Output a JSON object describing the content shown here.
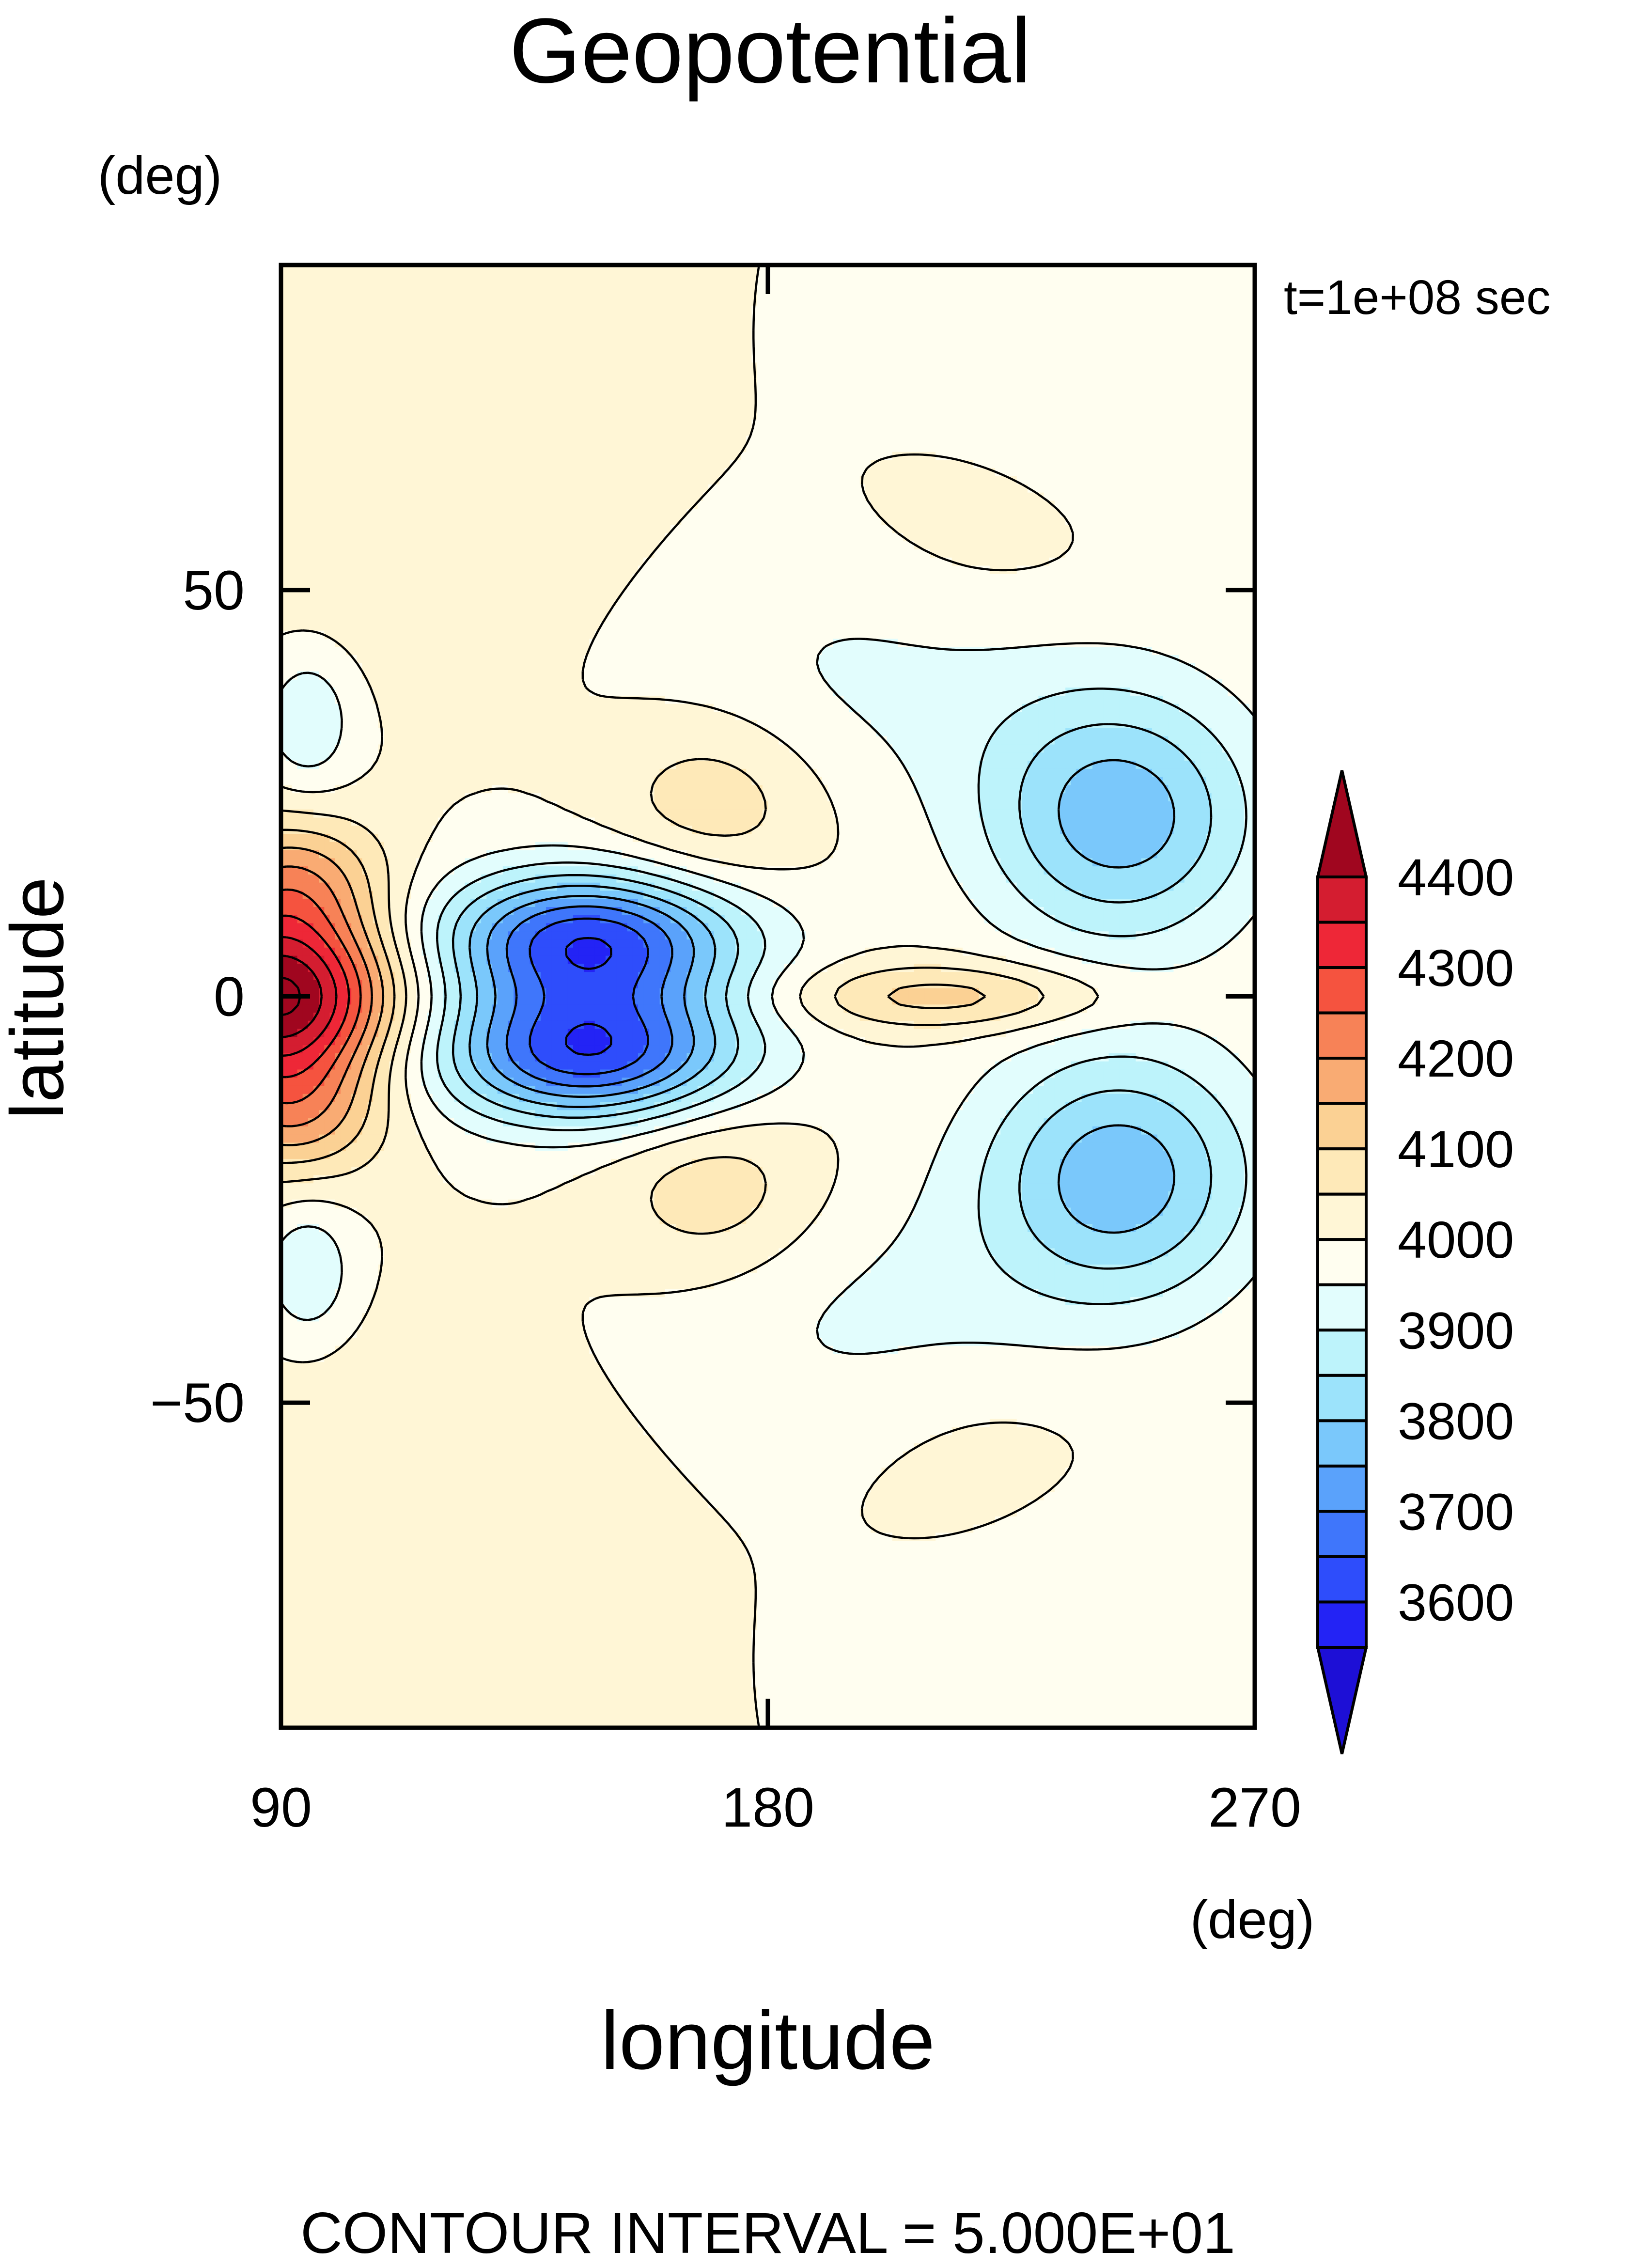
{
  "chart_data": {
    "type": "heatmap",
    "title": "Geopotential",
    "time_label": "t=1e+08 sec",
    "xlabel": "longitude",
    "xunit": "(deg)",
    "ylabel": "latitude",
    "yunit": "(deg)",
    "xlim": [
      90,
      270
    ],
    "ylim": [
      -90,
      90
    ],
    "x_ticks": [
      90,
      180,
      270
    ],
    "x_tick_labels": [
      "90",
      "180",
      "270"
    ],
    "y_ticks": [
      -50,
      0,
      50
    ],
    "y_tick_labels": [
      "−50",
      "0",
      "50"
    ],
    "footer": "CONTOUR INTERVAL = 5.000E+01",
    "contour_interval": 50,
    "colorbar": {
      "levels": [
        3550,
        3600,
        3650,
        3700,
        3750,
        3800,
        3850,
        3900,
        3950,
        4000,
        4050,
        4100,
        4150,
        4200,
        4250,
        4300,
        4350,
        4400,
        4450
      ],
      "labeled_values": [
        4400,
        4300,
        4200,
        4100,
        4000,
        3900,
        3800,
        3700,
        3600
      ],
      "labels": [
        "4400",
        "4300",
        "4200",
        "4100",
        "4000",
        "3900",
        "3800",
        "3700",
        "3600"
      ],
      "colors": [
        "#1d0fd6",
        "#2323f5",
        "#2e4dfb",
        "#3f76fb",
        "#5aa2fb",
        "#7ac8fb",
        "#9ce3fb",
        "#bdf3fb",
        "#e2fdfd",
        "#fffef0",
        "#fff6d6",
        "#fee9b8",
        "#fbd194",
        "#f9ab73",
        "#f78257",
        "#f5533f",
        "#ee2737",
        "#d41d30",
        "#a0061f"
      ]
    },
    "field": {
      "base": 4000,
      "components": [
        {
          "kind": "high",
          "lon": 90,
          "lat": 0,
          "amplitude": 450,
          "width_lon": 15,
          "width_lat": 7
        },
        {
          "kind": "high",
          "lon": 92,
          "lat": 14,
          "amplitude": 180,
          "width_lon": 12,
          "width_lat": 6
        },
        {
          "kind": "high",
          "lon": 92,
          "lat": -14,
          "amplitude": 180,
          "width_lon": 12,
          "width_lat": 6
        },
        {
          "kind": "low",
          "lon": 147,
          "lat": 7,
          "amplitude": -380,
          "width_lon": 20,
          "width_lat": 6
        },
        {
          "kind": "low",
          "lon": 147,
          "lat": -7,
          "amplitude": -380,
          "width_lon": 20,
          "width_lat": 6
        },
        {
          "kind": "high",
          "lon": 214,
          "lat": 0,
          "amplitude": 130,
          "width_lon": 22,
          "width_lat": 3
        },
        {
          "kind": "low",
          "lon": 245,
          "lat": 22,
          "amplitude": -230,
          "width_lon": 18,
          "width_lat": 11
        },
        {
          "kind": "low",
          "lon": 245,
          "lat": -22,
          "amplitude": -230,
          "width_lon": 18,
          "width_lat": 11
        },
        {
          "kind": "high",
          "lon": 170,
          "lat": 24,
          "amplitude": 90,
          "width_lon": 14,
          "width_lat": 8
        },
        {
          "kind": "high",
          "lon": 170,
          "lat": -24,
          "amplitude": 90,
          "width_lon": 14,
          "width_lat": 8
        },
        {
          "kind": "low",
          "lon": 95,
          "lat": 34,
          "amplitude": -100,
          "width_lon": 6,
          "width_lat": 6
        },
        {
          "kind": "low",
          "lon": 95,
          "lat": -34,
          "amplitude": -100,
          "width_lon": 6,
          "width_lat": 6
        },
        {
          "kind": "low",
          "lon": 200,
          "lat": 40,
          "amplitude": -60,
          "width_lon": 30,
          "width_lat": 12
        },
        {
          "kind": "low",
          "lon": 200,
          "lat": -40,
          "amplitude": -60,
          "width_lon": 30,
          "width_lat": 12
        },
        {
          "kind": "high",
          "lon": 115,
          "lat": 60,
          "amplitude": 40,
          "width_lon": 28,
          "width_lat": 15
        },
        {
          "kind": "high",
          "lon": 115,
          "lat": -60,
          "amplitude": 40,
          "width_lon": 28,
          "width_lat": 15
        },
        {
          "kind": "low",
          "lon": 240,
          "lat": 72,
          "amplitude": -45,
          "width_lon": 25,
          "width_lat": 10
        },
        {
          "kind": "low",
          "lon": 240,
          "lat": -72,
          "amplitude": -45,
          "width_lon": 25,
          "width_lat": 10
        },
        {
          "kind": "high",
          "lon": 220,
          "lat": 58,
          "amplitude": 40,
          "width_lon": 18,
          "width_lat": 10
        },
        {
          "kind": "high",
          "lon": 220,
          "lat": -58,
          "amplitude": 40,
          "width_lon": 18,
          "width_lat": 10
        }
      ]
    }
  }
}
